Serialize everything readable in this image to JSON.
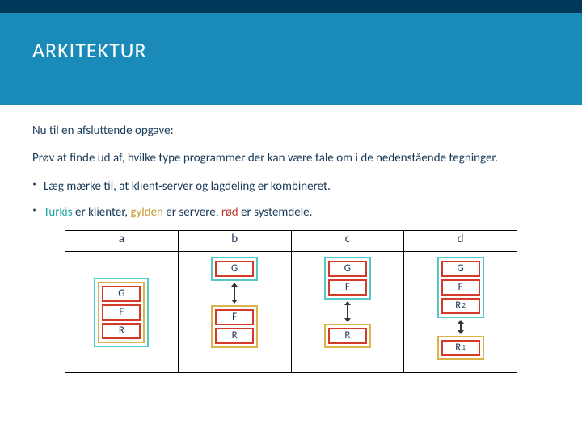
{
  "title": "ARKITEKTUR",
  "p1": "Nu til en afsluttende opgave:",
  "p2": "Prøv at finde ud af, hvilke type programmer der kan være tale om i de nedenstående tegninger.",
  "b1": "Læg mærke til, at klient-server og lagdeling er kombineret.",
  "b2_turkis": "Turkis",
  "b2_mid1": " er klienter, ",
  "b2_golden": "gylden",
  "b2_mid2": " er servere, ",
  "b2_red": "rød",
  "b2_end": " er systemdele.",
  "cols": {
    "a": "a",
    "b": "b",
    "c": "c",
    "d": "d"
  },
  "labels": {
    "G": "G",
    "F": "F",
    "R": "R",
    "R1": "R",
    "R1s": "1",
    "R2": "R",
    "R2s": "2"
  },
  "colors": {
    "turkis": "#55c8c8",
    "golden": "#d8b44a",
    "red": "#d43a2a",
    "header_bg": "#1a8bb8",
    "header_top": "#003859"
  }
}
